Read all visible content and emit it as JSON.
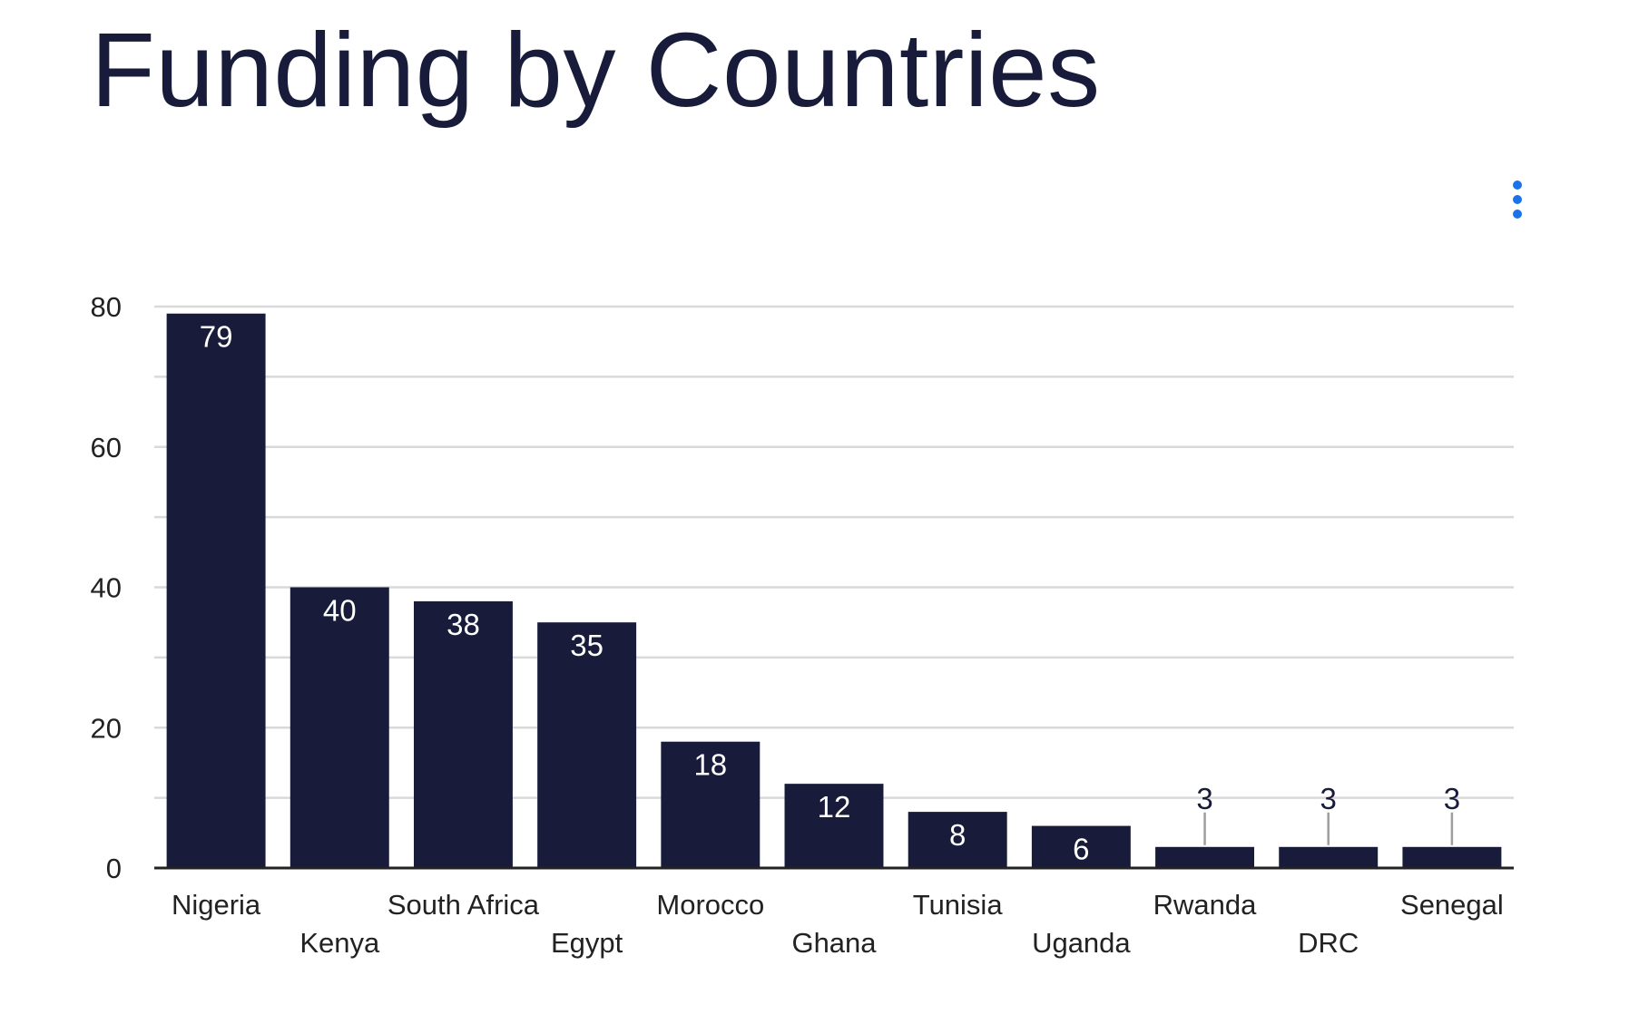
{
  "chart_data": {
    "type": "bar",
    "title": "Funding by Countries",
    "xlabel": "",
    "ylabel": "",
    "categories": [
      "Nigeria",
      "Kenya",
      "South Africa",
      "Egypt",
      "Morocco",
      "Ghana",
      "Tunisia",
      "Uganda",
      "Rwanda",
      "DRC",
      "Senegal"
    ],
    "values": [
      79,
      40,
      38,
      35,
      18,
      12,
      8,
      6,
      3,
      3,
      3
    ],
    "ylim": [
      0,
      80
    ],
    "yticks": [
      0,
      20,
      40,
      60,
      80
    ],
    "ytick_labels": [
      "0",
      "20",
      "40",
      "60",
      "80"
    ],
    "minor_gridlines": [
      10,
      30,
      50,
      70
    ],
    "grid": true,
    "legend": "none",
    "label_position": "inside-top"
  },
  "colors": {
    "bar": "#181c3a",
    "title": "#181c3a",
    "gridline": "#d9d9d9",
    "axis": "#222222",
    "tick_label": "#222222",
    "value_label_inside": "#ffffff",
    "value_label_outside": "#181c3a",
    "leader_line": "#9e9e9e",
    "menu_icon": "#1a73e8"
  },
  "icons": {
    "menu": "more-vert-icon"
  }
}
